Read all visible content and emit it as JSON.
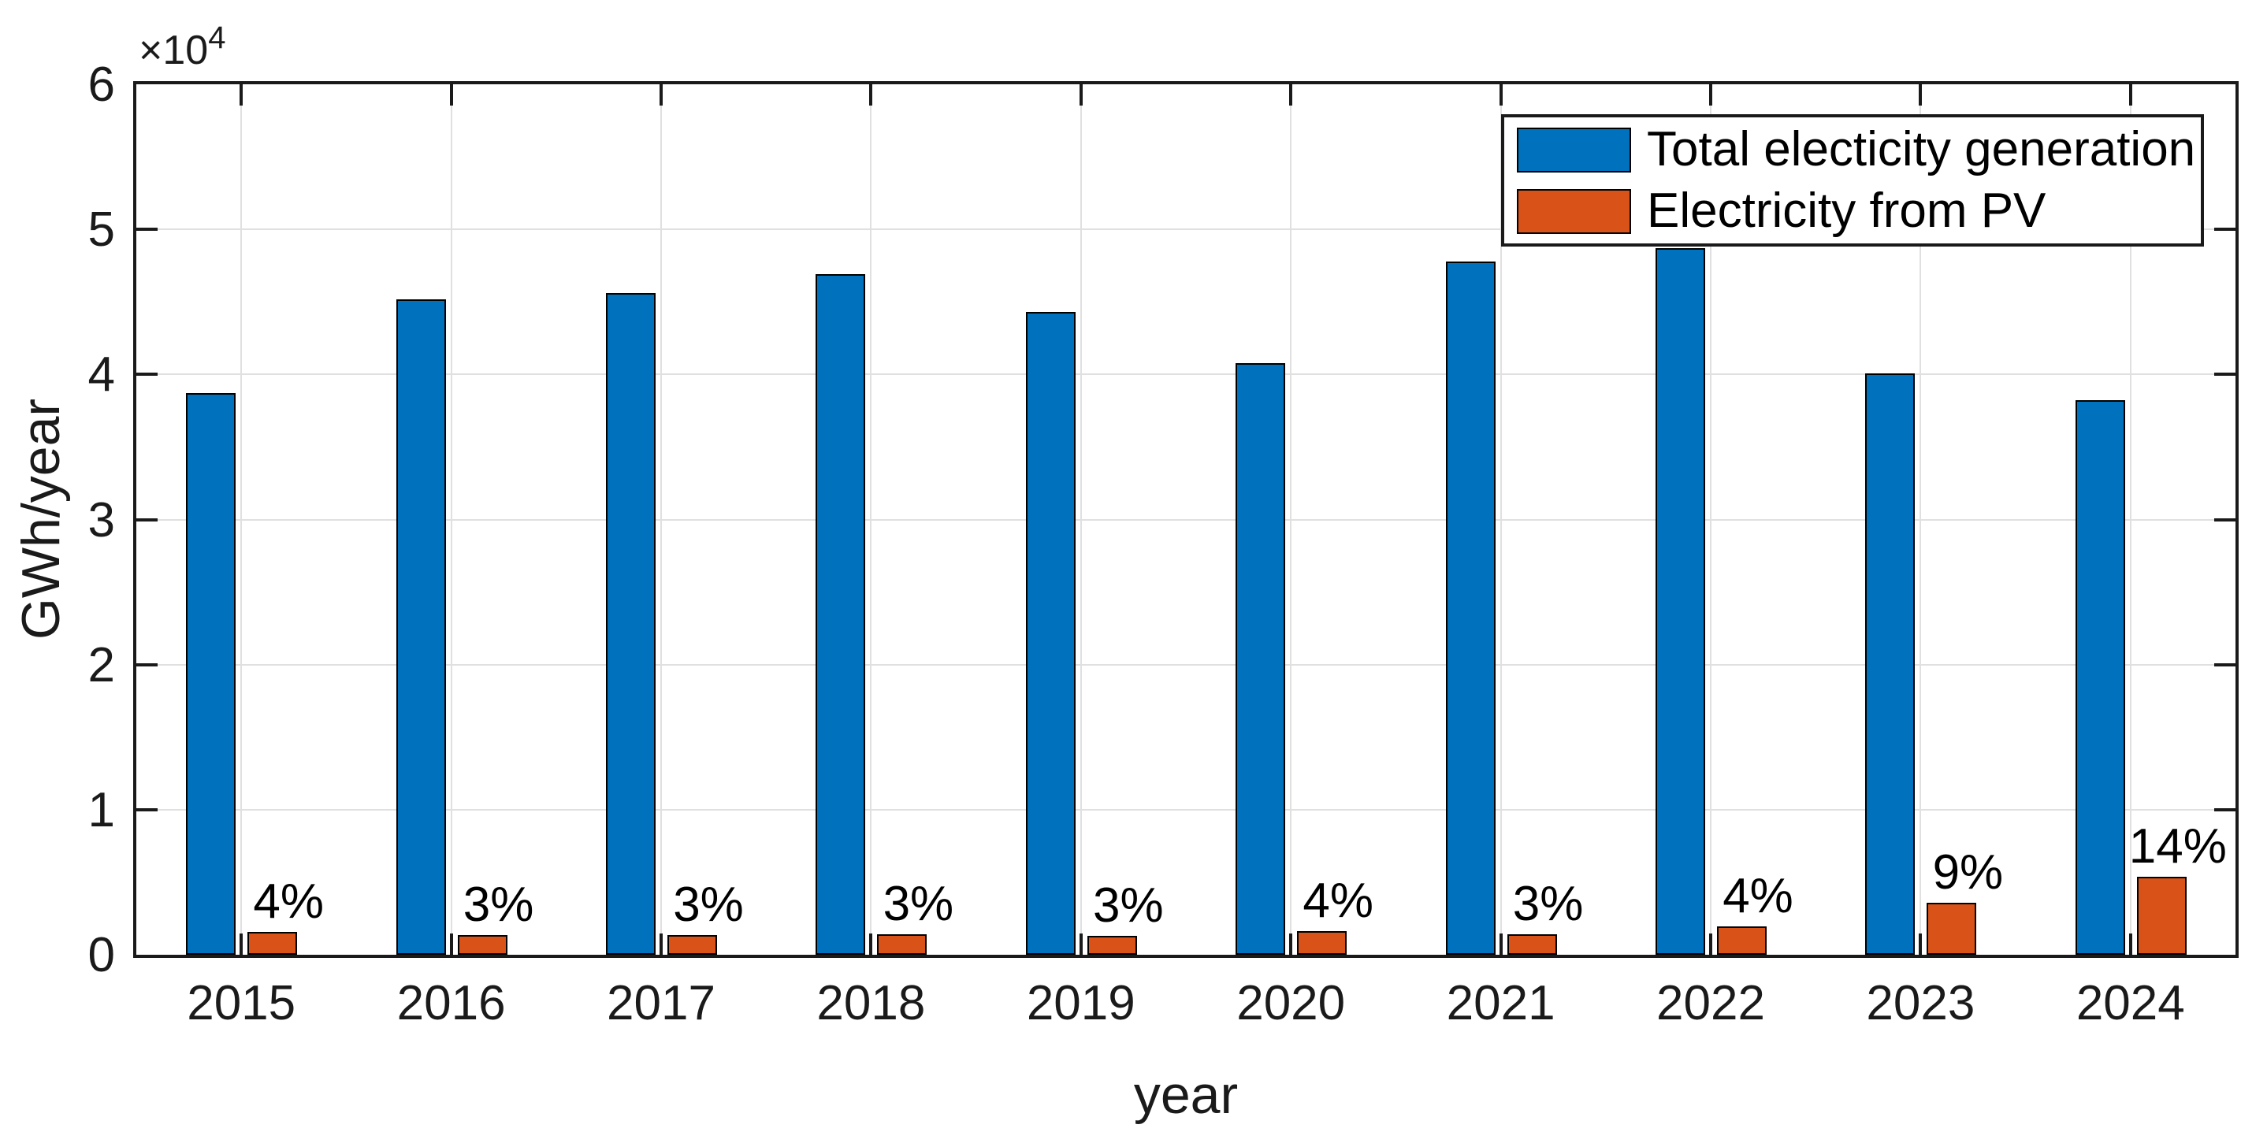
{
  "axes": {
    "ylabel": "GWh/year",
    "xlabel": "year",
    "offset_base": "×10",
    "offset_exp": "4",
    "ytick_labels": [
      "0",
      "1",
      "2",
      "3",
      "4",
      "5",
      "6"
    ]
  },
  "legend": {
    "items": [
      {
        "label": "Total electicity generation",
        "color": "#0072BD"
      },
      {
        "label": "Electricity from PV",
        "color": "#D95319"
      }
    ]
  },
  "colors": {
    "total": "#0072BD",
    "pv": "#D95319",
    "bar_edge": "#000000",
    "grid": "#E0E0E0",
    "axis": "#1a1a1a"
  },
  "chart_data": {
    "type": "bar",
    "categories": [
      "2015",
      "2016",
      "2017",
      "2018",
      "2019",
      "2020",
      "2021",
      "2022",
      "2023",
      "2024"
    ],
    "series": [
      {
        "name": "Total electicity generation",
        "values": [
          38700,
          45200,
          45600,
          46900,
          44300,
          40800,
          47800,
          48700,
          40100,
          38200
        ]
      },
      {
        "name": "Electricity from PV",
        "values": [
          1550,
          1360,
          1370,
          1410,
          1330,
          1630,
          1430,
          1950,
          3610,
          5350
        ]
      }
    ],
    "bar_labels": [
      "4%",
      "3%",
      "3%",
      "3%",
      "3%",
      "4%",
      "3%",
      "4%",
      "9%",
      "14%"
    ],
    "title": "",
    "xlabel": "year",
    "ylabel": "GWh/year",
    "y_offset_multiplier": "×10^4",
    "ylim": [
      0,
      60000
    ],
    "yticks": [
      0,
      10000,
      20000,
      30000,
      40000,
      50000,
      60000
    ],
    "grid": true,
    "legend_position": "northeast"
  }
}
